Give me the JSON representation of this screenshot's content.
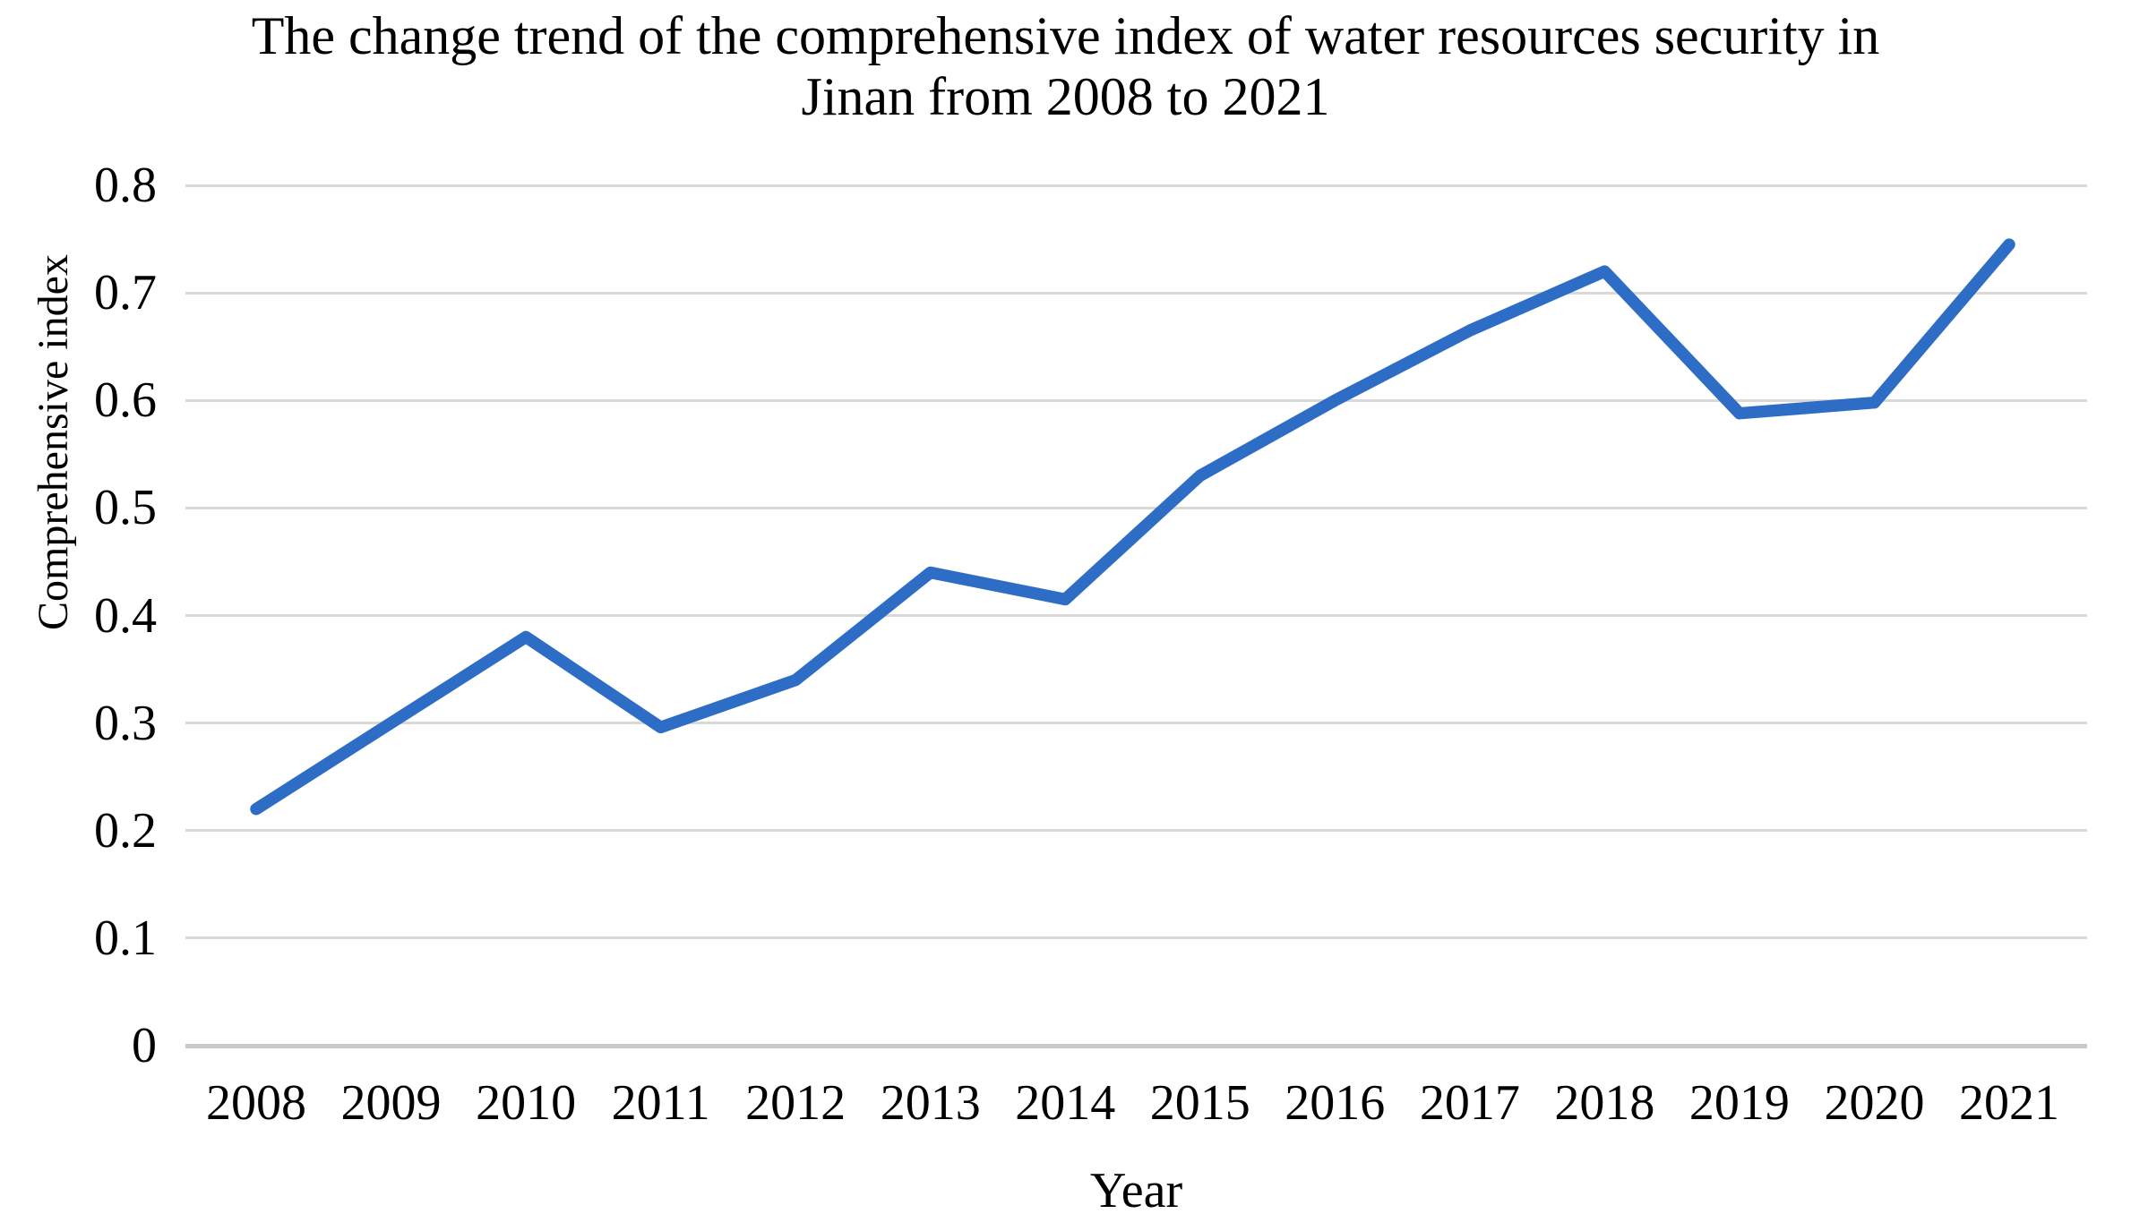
{
  "chart_data": {
    "type": "line",
    "title": "The change trend of the comprehensive index of water resources security in Jinan from 2008 to 2021",
    "title_lines": [
      "The change trend of the comprehensive index of water resources security in",
      "Jinan from 2008 to 2021"
    ],
    "xlabel": "Year",
    "ylabel": "Comprehensive index",
    "categories": [
      "2008",
      "2009",
      "2010",
      "2011",
      "2012",
      "2013",
      "2014",
      "2015",
      "2016",
      "2017",
      "2018",
      "2019",
      "2020",
      "2021"
    ],
    "series": [
      {
        "name": "Comprehensive index of water resources security",
        "values": [
          0.22,
          0.3,
          0.38,
          0.296,
          0.34,
          0.44,
          0.415,
          0.53,
          0.6,
          0.665,
          0.72,
          0.588,
          0.598,
          0.745
        ]
      }
    ],
    "ylim": [
      0,
      0.8
    ],
    "yticks": [
      "0",
      "0.1",
      "0.2",
      "0.3",
      "0.4",
      "0.5",
      "0.6",
      "0.7",
      "0.8"
    ],
    "grid": "horizontal",
    "legend": "none",
    "line_color": "#2e6dc6",
    "gridline_color": "#d9d9d9",
    "zero_line_color": "#c9c9c9",
    "background_color": "#ffffff",
    "text_color": "#000000"
  }
}
